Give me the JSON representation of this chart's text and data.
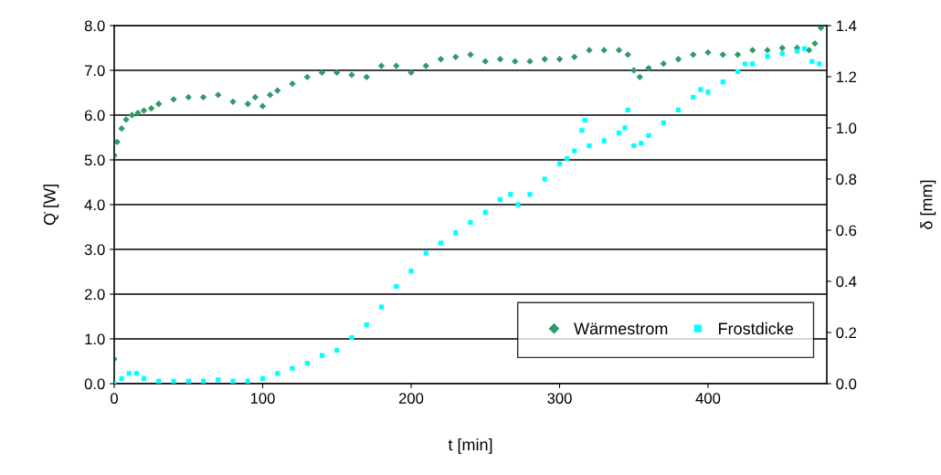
{
  "chart_data": {
    "type": "scatter",
    "xlabel": "t [min]",
    "ylabel": "Q̇ [W]",
    "y2label": "δ [mm]",
    "xlim": [
      0,
      480
    ],
    "xticks": [
      0,
      100,
      200,
      300,
      400
    ],
    "ylim": [
      0,
      8
    ],
    "yticks": [
      {
        "value": 0,
        "label": "0.0"
      },
      {
        "value": 1,
        "label": "1.0"
      },
      {
        "value": 2,
        "label": "2.0"
      },
      {
        "value": 3,
        "label": "3.0"
      },
      {
        "value": 4,
        "label": "4.0"
      },
      {
        "value": 5,
        "label": "5.0"
      },
      {
        "value": 6,
        "label": "6.0"
      },
      {
        "value": 7,
        "label": "7.0"
      },
      {
        "value": 8,
        "label": "8.0"
      }
    ],
    "y2lim": [
      0,
      1.4
    ],
    "y2ticks": [
      {
        "value": 0,
        "label": "0.0"
      },
      {
        "value": 0.2,
        "label": "0.2"
      },
      {
        "value": 0.4,
        "label": "0.4"
      },
      {
        "value": 0.6,
        "label": "0.6"
      },
      {
        "value": 0.8,
        "label": "0.8"
      },
      {
        "value": 1.0,
        "label": "1.0"
      },
      {
        "value": 1.2,
        "label": "1.2"
      },
      {
        "value": 1.4,
        "label": "1.4"
      }
    ],
    "grid": "y",
    "legend": "bottom right",
    "series": [
      {
        "name": "Wärmestrom",
        "color": "#339966",
        "marker": "diamond",
        "x": [
          0,
          0,
          2,
          5,
          8,
          12,
          16,
          20,
          25,
          30,
          40,
          50,
          60,
          70,
          80,
          90,
          95,
          100,
          105,
          110,
          120,
          130,
          140,
          150,
          160,
          170,
          180,
          190,
          200,
          210,
          220,
          230,
          240,
          250,
          260,
          270,
          280,
          290,
          300,
          310,
          320,
          330,
          340,
          346,
          350,
          354,
          360,
          370,
          380,
          390,
          400,
          410,
          420,
          430,
          440,
          450,
          460,
          468,
          472,
          476
        ],
        "values": [
          0.55,
          5.1,
          5.4,
          5.7,
          5.9,
          6.0,
          6.05,
          6.1,
          6.15,
          6.25,
          6.35,
          6.4,
          6.4,
          6.45,
          6.3,
          6.25,
          6.4,
          6.2,
          6.45,
          6.55,
          6.7,
          6.85,
          6.95,
          6.95,
          6.9,
          6.85,
          7.1,
          7.1,
          6.95,
          7.1,
          7.25,
          7.3,
          7.35,
          7.2,
          7.25,
          7.2,
          7.2,
          7.25,
          7.25,
          7.3,
          7.45,
          7.45,
          7.45,
          7.35,
          7.0,
          6.85,
          7.05,
          7.15,
          7.25,
          7.35,
          7.4,
          7.35,
          7.35,
          7.45,
          7.45,
          7.5,
          7.5,
          7.45,
          7.6,
          7.95
        ]
      },
      {
        "name": "Frostdicke",
        "color": "#00ffff",
        "marker": "square",
        "axis": "y2",
        "x": [
          0,
          5,
          10,
          15,
          20,
          30,
          40,
          50,
          60,
          70,
          80,
          90,
          100,
          110,
          120,
          130,
          140,
          150,
          160,
          170,
          180,
          190,
          200,
          210,
          220,
          230,
          240,
          250,
          260,
          267,
          272,
          280,
          290,
          300,
          305,
          310,
          315,
          317,
          320,
          330,
          340,
          344,
          346,
          350,
          355,
          360,
          370,
          380,
          390,
          395,
          400,
          410,
          420,
          425,
          430,
          440,
          450,
          460,
          465,
          470,
          475
        ],
        "values": [
          0.0,
          0.02,
          0.04,
          0.04,
          0.02,
          0.01,
          0.01,
          0.01,
          0.01,
          0.015,
          0.01,
          0.01,
          0.02,
          0.04,
          0.06,
          0.08,
          0.11,
          0.13,
          0.18,
          0.23,
          0.3,
          0.38,
          0.44,
          0.51,
          0.55,
          0.59,
          0.63,
          0.67,
          0.72,
          0.74,
          0.7,
          0.74,
          0.8,
          0.86,
          0.88,
          0.91,
          0.99,
          1.03,
          0.93,
          0.95,
          0.98,
          1.0,
          1.07,
          0.93,
          0.94,
          0.97,
          1.02,
          1.07,
          1.12,
          1.15,
          1.14,
          1.18,
          1.22,
          1.25,
          1.25,
          1.28,
          1.29,
          1.3,
          1.31,
          1.26,
          1.25
        ]
      }
    ]
  }
}
